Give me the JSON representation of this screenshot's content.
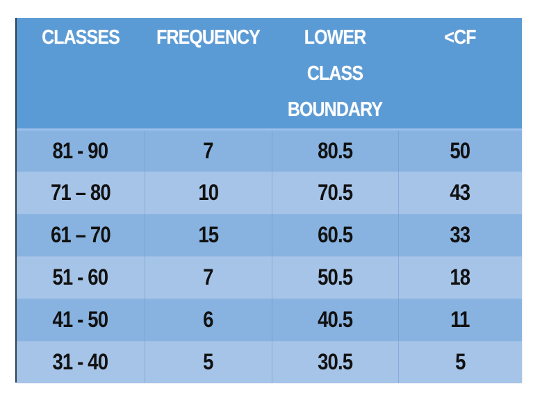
{
  "table": {
    "headers": [
      {
        "lines": [
          "CLASSES"
        ]
      },
      {
        "lines": [
          "FREQUENCY"
        ]
      },
      {
        "lines": [
          "LOWER",
          "CLASS",
          "BOUNDARY"
        ]
      },
      {
        "lines": [
          "<CF"
        ]
      }
    ],
    "rows": [
      {
        "classes": "81 - 90",
        "frequency": "7",
        "lower_class_boundary": "80.5",
        "less_than_cf": "50"
      },
      {
        "classes": "71 – 80",
        "frequency": "10",
        "lower_class_boundary": "70.5",
        "less_than_cf": "43"
      },
      {
        "classes": "61 – 70",
        "frequency": "15",
        "lower_class_boundary": "60.5",
        "less_than_cf": "33"
      },
      {
        "classes": "51 - 60",
        "frequency": "7",
        "lower_class_boundary": "50.5",
        "less_than_cf": "18"
      },
      {
        "classes": "41 - 50",
        "frequency": "6",
        "lower_class_boundary": "40.5",
        "less_than_cf": "11"
      },
      {
        "classes": "31 - 40",
        "frequency": "5",
        "lower_class_boundary": "30.5",
        "less_than_cf": "5"
      }
    ]
  },
  "colors": {
    "header_bg": "#5b9bd5",
    "row_dark": "#88b3e0",
    "row_light": "#a6c4e8",
    "header_text": "#ffffff",
    "body_text": "#111111"
  }
}
